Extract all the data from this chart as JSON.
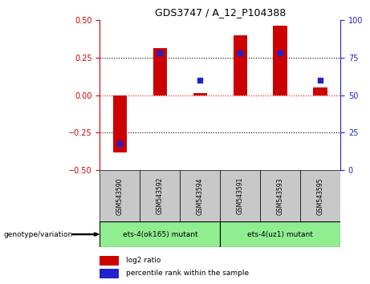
{
  "title": "GDS3747 / A_12_P104388",
  "samples": [
    "GSM543590",
    "GSM543592",
    "GSM543594",
    "GSM543591",
    "GSM543593",
    "GSM543595"
  ],
  "log2_ratio": [
    -0.38,
    0.31,
    0.015,
    0.4,
    0.46,
    0.05
  ],
  "percentile_rank": [
    18,
    78,
    60,
    78,
    78,
    60
  ],
  "ylim_left": [
    -0.5,
    0.5
  ],
  "ylim_right": [
    0,
    100
  ],
  "yticks_left": [
    -0.5,
    -0.25,
    0,
    0.25,
    0.5
  ],
  "yticks_right": [
    0,
    25,
    50,
    75,
    100
  ],
  "bar_color": "#cc0000",
  "dot_color": "#2222cc",
  "left_axis_color": "#cc0000",
  "right_axis_color": "#2222cc",
  "group1_label": "ets-4(ok165) mutant",
  "group2_label": "ets-4(uz1) mutant",
  "group1_indices": [
    0,
    1,
    2
  ],
  "group2_indices": [
    3,
    4,
    5
  ],
  "group_bg_color": "#90ee90",
  "sample_bg_color": "#c8c8c8",
  "genotype_label": "genotype/variation",
  "legend_log2": "log2 ratio",
  "legend_pct": "percentile rank within the sample",
  "bar_width": 0.35,
  "dot_size": 25
}
